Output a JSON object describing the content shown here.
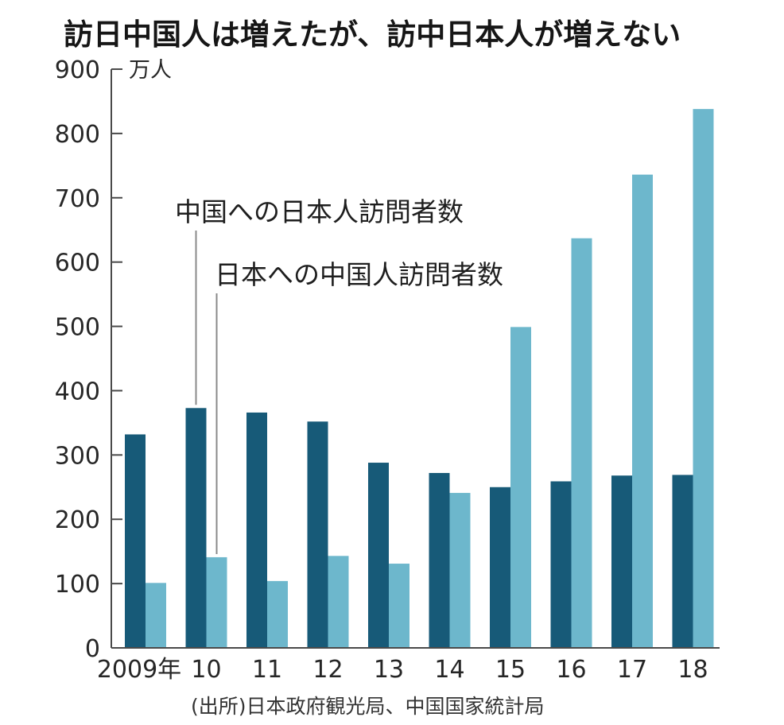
{
  "chart_data": {
    "type": "bar",
    "title": "訪日中国人は増えたが、訪中日本人が増えない",
    "ylabel": "万人",
    "ylim": [
      0,
      900
    ],
    "yticks": [
      "0",
      "100",
      "200",
      "300",
      "400",
      "500",
      "600",
      "700",
      "800",
      "900"
    ],
    "grid": false,
    "categories": [
      "2009年",
      "10",
      "11",
      "12",
      "13",
      "14",
      "15",
      "16",
      "17",
      "18"
    ],
    "series": [
      {
        "name": "中国への日本人訪問者数",
        "color": "#175a78",
        "values": [
          332,
          373,
          366,
          352,
          288,
          272,
          250,
          259,
          268,
          269
        ]
      },
      {
        "name": "日本への中国人訪問者数",
        "color": "#6db7cc",
        "values": [
          101,
          141,
          104,
          143,
          131,
          241,
          499,
          637,
          736,
          838
        ]
      }
    ],
    "source": "(出所)日本政府観光局、中国国家統計局"
  }
}
